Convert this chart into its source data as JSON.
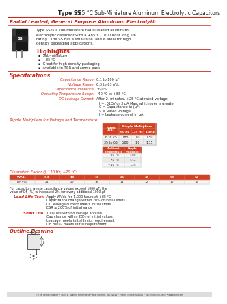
{
  "title_bold": "Type SS",
  "title_rest": "  85 °C Sub-Miniature Aluminum Electrolytic Capacitors",
  "subtitle": "Radial Leaded, General Purpose Aluminum Electrolytic",
  "description_lines": [
    "Type SS is a sub-miniature radial leaded aluminum",
    "electrolytic capacitor with a +85°C, 1000 hour long life",
    "rating.  The SS has a small size  and is ideal for high",
    "density packaging applications."
  ],
  "highlights_title": "Highlights",
  "highlights": [
    "Sub-miniature",
    "+85 °C",
    "Great for high-density packaging",
    "Available in T&R and ammo pack"
  ],
  "specs_title": "Specifications",
  "specs": [
    [
      "Capacitance Range:",
      "0.1 to 100 μF"
    ],
    [
      "Voltage Range:",
      "6.3 to 63 Vdc"
    ],
    [
      "Capacitance Tolerance:",
      "±20%"
    ],
    [
      "Operating Temperature Range:",
      "–40 °C to +85 °C"
    ],
    [
      "DC Leakage Current:",
      "After 2  minutes, +25 °C at rated voltage"
    ]
  ],
  "dc_leakage_extra": [
    "I = .01CV or 3 μA Max, whichever is greater",
    "C = Capacitance in (μF)",
    "V = Rated voltage",
    "I = Leakage current in μA"
  ],
  "ripple_title": "Ripple Multipliers for Voltage and Temperature:",
  "ripple_table1_col_headers": [
    "Rated\nVVdc",
    "60 Hz",
    "125 Hz",
    "1 kHz"
  ],
  "ripple_table1_rows": [
    [
      "6 to 25",
      "0.85",
      "1.0",
      "1.50"
    ],
    [
      "35 to 63",
      "0.80",
      "1.0",
      "1.35"
    ]
  ],
  "ripple_table2_col_headers": [
    "Ambient\nTemperature",
    "Ripple\nMultiplier"
  ],
  "ripple_table2_rows": [
    [
      "+85 °C",
      "1.00"
    ],
    [
      "+75 °C",
      "1.14"
    ],
    [
      "+45 °C",
      "1.25"
    ]
  ],
  "dissipation_title": "Dissipation Factor @ 120 Hz, +20 °C:",
  "dissipation_headers": [
    "WVdc",
    "6.3",
    "10",
    "16",
    "25",
    "35",
    "50",
    "63"
  ],
  "dissipation_data": [
    "DF (%)",
    "24",
    "20",
    "16",
    "14",
    "12",
    "10",
    "10"
  ],
  "dissipation_note1": "For capacitors whose capacitance values exceed 1000 μF, the",
  "dissipation_note2": "value of DF (%) is increased 2% for every additional 1000 μF",
  "lead_life_title": "Lead Life Test:",
  "lead_life_lines": [
    "Apply WVdc for 1,000 hours at +85 °C",
    "Capacitance change within 20% of initial limits",
    "DC leakage current meets initial limits",
    "ESR ≤ 200% of initial value"
  ],
  "shelf_title": "Shelf Life:",
  "shelf_lines": [
    "1000 hrs with no voltage applied",
    "Cap change within 20% of initial values",
    "Leakage meets initial limits requirement",
    "DF 200%, meets initial requirement"
  ],
  "outline_title": "Outline Drawing",
  "footer_text": "© TDK Cornel Dubilier • 1605 E. Rodney French Blvd • New Bedford, MA 02744 • Phone: (508)996-8561 • Fax: (508)996-3830 • www.cde.com",
  "bg_color": "#ffffff",
  "red_color": "#c8291a",
  "dark_color": "#222222",
  "table_hdr_color": "#d44020",
  "line_color": "#c8291a"
}
